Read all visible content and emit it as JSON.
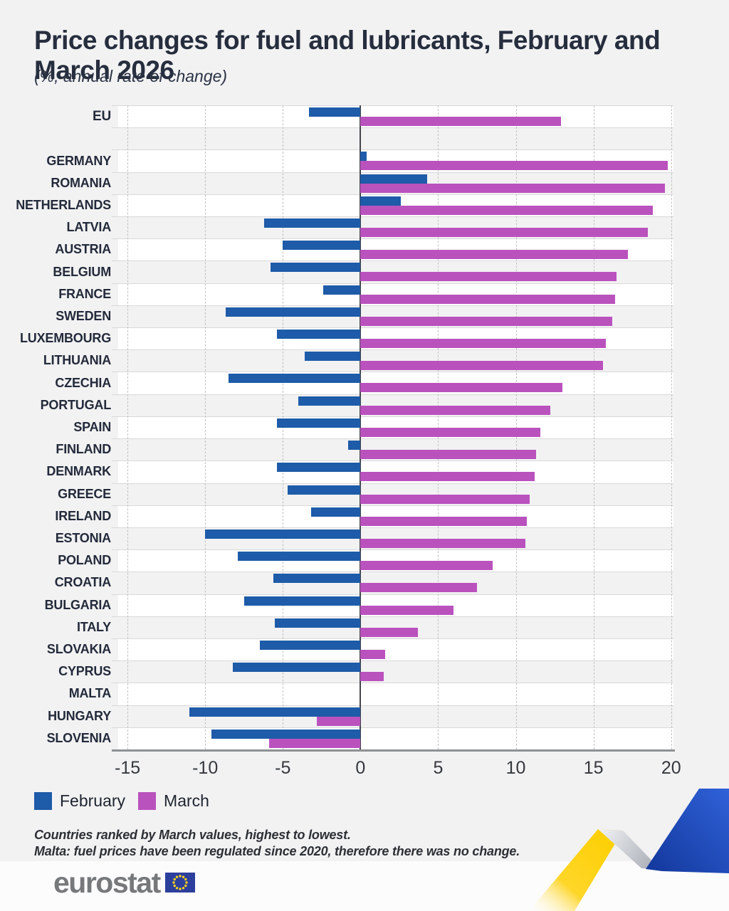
{
  "title": "Price changes for fuel and lubricants, February and March 2026",
  "subtitle": "(%, annual rate of change)",
  "legend": {
    "february_label": "February",
    "march_label": "March"
  },
  "footnotes": [
    "Countries ranked by March values, highest to lowest.",
    "Malta: fuel prices have been regulated since 2020, therefore there was no change."
  ],
  "logo": {
    "text": "eurostat"
  },
  "colors": {
    "february": "#1e5ba8",
    "march": "#ba52bd",
    "zero_line": "#44464b",
    "page_background": "#f2f2f3",
    "flag_blue": "#2d3f9c",
    "flag_star_yellow": "#f8d11b",
    "ribbon_yellow": "#fed10c",
    "ribbon_blue": "#2150c8",
    "ribbon_silver": "#b9bdc6"
  },
  "chart_data": {
    "type": "bar",
    "orientation": "horizontal",
    "title": "Price changes for fuel and lubricants, February and March 2026",
    "xlabel": "% annual rate of change",
    "x_ticks": [
      -15,
      -10,
      -5,
      0,
      5,
      10,
      15,
      20
    ],
    "xlim": [
      -15.6,
      20.15
    ],
    "grid": "vertical-dashed",
    "legend_position": "bottom-left",
    "categories": [
      "EU",
      "GERMANY",
      "ROMANIA",
      "NETHERLANDS",
      "LATVIA",
      "AUSTRIA",
      "BELGIUM",
      "FRANCE",
      "SWEDEN",
      "LUXEMBOURG",
      "LITHUANIA",
      "CZECHIA",
      "PORTUGAL",
      "SPAIN",
      "FINLAND",
      "DENMARK",
      "GREECE",
      "IRELAND",
      "ESTONIA",
      "POLAND",
      "CROATIA",
      "BULGARIA",
      "ITALY",
      "SLOVAKIA",
      "CYPRUS",
      "MALTA",
      "HUNGARY",
      "SLOVENIA"
    ],
    "series": [
      {
        "name": "February",
        "color": "#1e5ba8",
        "values": [
          -3.3,
          0.4,
          4.3,
          2.6,
          -6.2,
          -5.0,
          -5.8,
          -2.4,
          -8.7,
          -5.4,
          -3.6,
          -8.5,
          -4.0,
          -5.4,
          -0.8,
          -5.4,
          -4.7,
          -3.2,
          -10.0,
          -7.9,
          -5.6,
          -7.5,
          -5.5,
          -6.5,
          -8.2,
          0,
          -11.0,
          -9.6
        ]
      },
      {
        "name": "March",
        "color": "#ba52bd",
        "values": [
          12.9,
          19.8,
          19.6,
          18.8,
          18.5,
          17.2,
          16.5,
          16.4,
          16.2,
          15.8,
          15.6,
          13.0,
          12.2,
          11.6,
          11.3,
          11.2,
          10.9,
          10.7,
          10.6,
          8.5,
          7.5,
          6.0,
          3.7,
          1.6,
          1.5,
          0,
          -2.8,
          -5.9
        ]
      }
    ],
    "notes": "EU row separated from countries by an empty band; Malta has no bars (no change)."
  }
}
